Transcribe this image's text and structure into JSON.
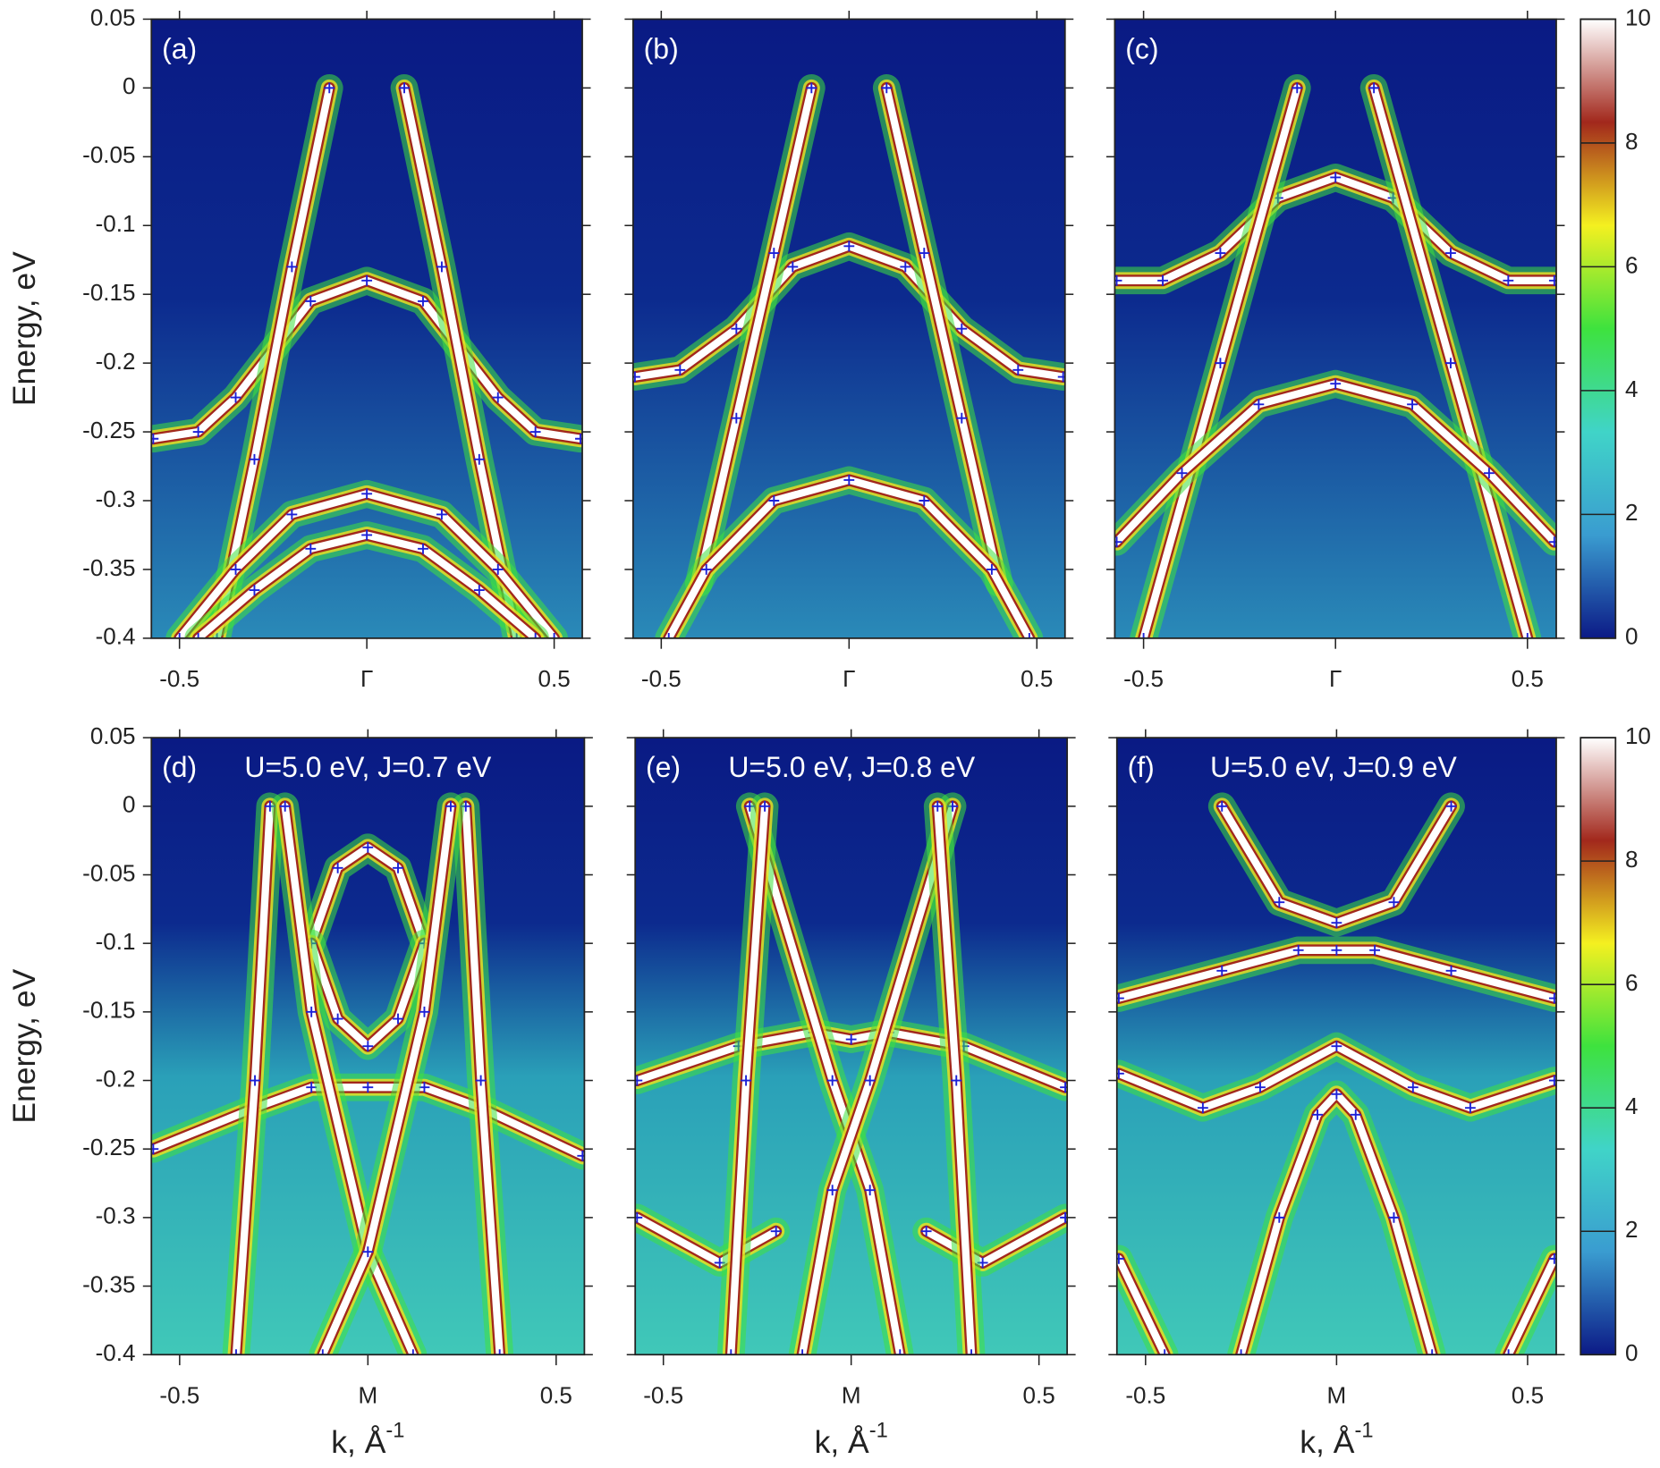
{
  "chart_data": [
    {
      "type": "line",
      "title": "(a)",
      "ylabel": "Energy, eV",
      "xlim": [
        -0.575,
        0.575
      ],
      "xticks": [
        -0.5,
        {
          "value": 0,
          "label": "Γ"
        },
        0.5
      ],
      "ylim": [
        -0.4,
        0.05
      ],
      "yticks": [
        0.05,
        0,
        -0.05,
        -0.1,
        -0.15,
        -0.2,
        -0.25,
        -0.3,
        -0.35,
        -0.4
      ],
      "series": [
        {
          "x": [
            -0.57,
            -0.45,
            -0.35,
            -0.25,
            -0.15,
            0,
            0.15,
            0.25,
            0.35,
            0.45,
            0.57
          ],
          "values": [
            -0.255,
            -0.25,
            -0.225,
            -0.19,
            -0.155,
            -0.14,
            -0.155,
            -0.19,
            -0.225,
            -0.25,
            -0.255
          ]
        },
        {
          "x": [
            -0.1,
            -0.2,
            -0.3,
            -0.4
          ],
          "values": [
            0,
            -0.13,
            -0.27,
            -0.4
          ]
        },
        {
          "x": [
            0.1,
            0.2,
            0.3,
            0.4
          ],
          "values": [
            0,
            -0.13,
            -0.27,
            -0.4
          ]
        },
        {
          "x": [
            -0.5,
            -0.35,
            -0.2,
            0,
            0.2,
            0.35,
            0.5
          ],
          "values": [
            -0.4,
            -0.35,
            -0.31,
            -0.295,
            -0.31,
            -0.35,
            -0.4
          ]
        },
        {
          "x": [
            -0.45,
            -0.3,
            -0.15,
            0,
            0.15,
            0.3,
            0.45
          ],
          "values": [
            -0.4,
            -0.365,
            -0.335,
            -0.325,
            -0.335,
            -0.365,
            -0.4
          ]
        }
      ]
    },
    {
      "type": "line",
      "title": "(b)",
      "xlim": [
        -0.575,
        0.575
      ],
      "xticks": [
        -0.5,
        {
          "value": 0,
          "label": "Γ"
        },
        0.5
      ],
      "ylim": [
        -0.4,
        0.05
      ],
      "yticks": [
        0.05,
        0,
        -0.05,
        -0.1,
        -0.15,
        -0.2,
        -0.25,
        -0.3,
        -0.35,
        -0.4
      ],
      "series": [
        {
          "x": [
            -0.57,
            -0.45,
            -0.3,
            -0.15,
            0,
            0.15,
            0.3,
            0.45,
            0.57
          ],
          "values": [
            -0.21,
            -0.205,
            -0.175,
            -0.13,
            -0.115,
            -0.13,
            -0.175,
            -0.205,
            -0.21
          ]
        },
        {
          "x": [
            -0.1,
            -0.2,
            -0.3,
            -0.4
          ],
          "values": [
            0,
            -0.12,
            -0.24,
            -0.36
          ]
        },
        {
          "x": [
            0.1,
            0.2,
            0.3,
            0.4
          ],
          "values": [
            0,
            -0.12,
            -0.24,
            -0.36
          ]
        },
        {
          "x": [
            -0.48,
            -0.38,
            -0.2,
            0,
            0.2,
            0.38,
            0.48
          ],
          "values": [
            -0.4,
            -0.35,
            -0.3,
            -0.285,
            -0.3,
            -0.35,
            -0.4
          ]
        }
      ]
    },
    {
      "type": "line",
      "title": "(c)",
      "xlim": [
        -0.575,
        0.575
      ],
      "xticks": [
        -0.5,
        {
          "value": 0,
          "label": "Γ"
        },
        0.5
      ],
      "ylim": [
        -0.4,
        0.05
      ],
      "yticks": [
        0.05,
        0,
        -0.05,
        -0.1,
        -0.15,
        -0.2,
        -0.25,
        -0.3,
        -0.35,
        -0.4
      ],
      "series": [
        {
          "x": [
            -0.57,
            -0.45,
            -0.3,
            -0.15,
            0,
            0.15,
            0.3,
            0.45,
            0.57
          ],
          "values": [
            -0.14,
            -0.14,
            -0.12,
            -0.08,
            -0.065,
            -0.08,
            -0.12,
            -0.14,
            -0.14
          ]
        },
        {
          "x": [
            -0.1,
            -0.3,
            -0.5
          ],
          "values": [
            0,
            -0.2,
            -0.4
          ]
        },
        {
          "x": [
            0.1,
            0.3,
            0.5
          ],
          "values": [
            0,
            -0.2,
            -0.4
          ]
        },
        {
          "x": [
            -0.57,
            -0.4,
            -0.2,
            0,
            0.2,
            0.4,
            0.57
          ],
          "values": [
            -0.33,
            -0.28,
            -0.23,
            -0.215,
            -0.23,
            -0.28,
            -0.33
          ]
        }
      ]
    },
    {
      "type": "line",
      "title": "(d)",
      "annotation": "U=5.0 eV, J=0.7 eV",
      "ylabel": "Energy, eV",
      "xlabel": "k, Å",
      "xlabel_exponent": "-1",
      "xlim": [
        -0.575,
        0.575
      ],
      "xticks": [
        -0.5,
        {
          "value": 0,
          "label": "M"
        },
        0.5
      ],
      "ylim": [
        -0.4,
        0.05
      ],
      "yticks": [
        0.05,
        0,
        -0.05,
        -0.1,
        -0.15,
        -0.2,
        -0.25,
        -0.3,
        -0.35,
        -0.4
      ],
      "series": [
        {
          "x": [
            -0.57,
            -0.3,
            -0.15,
            0,
            0.15,
            0.3,
            0.57
          ],
          "values": [
            -0.25,
            -0.22,
            -0.205,
            -0.205,
            -0.205,
            -0.22,
            -0.255
          ]
        },
        {
          "x": [
            -0.15,
            -0.08,
            0,
            0.08,
            0.15
          ],
          "values": [
            -0.1,
            -0.045,
            -0.03,
            -0.045,
            -0.1
          ]
        },
        {
          "x": [
            -0.15,
            -0.08,
            0,
            0.08,
            0.15
          ],
          "values": [
            -0.1,
            -0.155,
            -0.175,
            -0.155,
            -0.1
          ]
        },
        {
          "x": [
            -0.26,
            -0.3,
            -0.35
          ],
          "values": [
            0,
            -0.2,
            -0.4
          ]
        },
        {
          "x": [
            0.26,
            0.3,
            0.35
          ],
          "values": [
            0,
            -0.2,
            -0.4
          ]
        },
        {
          "x": [
            -0.22,
            -0.15,
            0,
            0.12
          ],
          "values": [
            0,
            -0.15,
            -0.325,
            -0.4
          ]
        },
        {
          "x": [
            0.22,
            0.15,
            0,
            -0.12
          ],
          "values": [
            0,
            -0.15,
            -0.325,
            -0.4
          ]
        }
      ]
    },
    {
      "type": "line",
      "title": "(e)",
      "annotation": "U=5.0 eV, J=0.8 eV",
      "xlabel": "k, Å",
      "xlabel_exponent": "-1",
      "xlim": [
        -0.575,
        0.575
      ],
      "xticks": [
        -0.5,
        {
          "value": 0,
          "label": "M"
        },
        0.5
      ],
      "ylim": [
        -0.4,
        0.05
      ],
      "yticks": [
        0.05,
        0,
        -0.05,
        -0.1,
        -0.15,
        -0.2,
        -0.25,
        -0.3,
        -0.35,
        -0.4
      ],
      "series": [
        {
          "x": [
            -0.57,
            -0.3,
            -0.1,
            0,
            0.1,
            0.3,
            0.57
          ],
          "values": [
            -0.2,
            -0.175,
            -0.165,
            -0.17,
            -0.165,
            -0.175,
            -0.205
          ]
        },
        {
          "x": [
            -0.57,
            -0.35,
            -0.2
          ],
          "values": [
            -0.3,
            -0.333,
            -0.31
          ]
        },
        {
          "x": [
            0.2,
            0.35,
            0.57
          ],
          "values": [
            -0.31,
            -0.333,
            -0.3
          ]
        },
        {
          "x": [
            -0.27,
            -0.05,
            0.05,
            0.13
          ],
          "values": [
            0,
            -0.2,
            -0.28,
            -0.4
          ]
        },
        {
          "x": [
            0.27,
            0.05,
            -0.05,
            -0.13
          ],
          "values": [
            0,
            -0.2,
            -0.28,
            -0.4
          ]
        },
        {
          "x": [
            -0.23,
            -0.28,
            -0.32
          ],
          "values": [
            0,
            -0.2,
            -0.4
          ]
        },
        {
          "x": [
            0.23,
            0.28,
            0.32
          ],
          "values": [
            0,
            -0.2,
            -0.4
          ]
        }
      ]
    },
    {
      "type": "line",
      "title": "(f)",
      "annotation": "U=5.0 eV, J=0.9 eV",
      "xlabel": "k, Å",
      "xlabel_exponent": "-1",
      "xlim": [
        -0.575,
        0.575
      ],
      "xticks": [
        -0.5,
        {
          "value": 0,
          "label": "M"
        },
        0.5
      ],
      "ylim": [
        -0.4,
        0.05
      ],
      "yticks": [
        0.05,
        0,
        -0.05,
        -0.1,
        -0.15,
        -0.2,
        -0.25,
        -0.3,
        -0.35,
        -0.4
      ],
      "series": [
        {
          "x": [
            -0.57,
            -0.3,
            -0.1,
            0,
            0.1,
            0.3,
            0.57
          ],
          "values": [
            -0.14,
            -0.12,
            -0.105,
            -0.105,
            -0.105,
            -0.12,
            -0.14
          ]
        },
        {
          "x": [
            -0.57,
            -0.35,
            -0.2,
            0,
            0.2,
            0.35,
            0.57
          ],
          "values": [
            -0.195,
            -0.22,
            -0.205,
            -0.175,
            -0.205,
            -0.22,
            -0.2
          ]
        },
        {
          "x": [
            -0.3,
            -0.15,
            0,
            0.15,
            0.3
          ],
          "values": [
            0,
            -0.07,
            -0.085,
            -0.07,
            0
          ]
        },
        {
          "x": [
            -0.25,
            -0.15,
            -0.05,
            0,
            0.05,
            0.15,
            0.25
          ],
          "values": [
            -0.4,
            -0.3,
            -0.225,
            -0.21,
            -0.225,
            -0.3,
            -0.4
          ]
        },
        {
          "x": [
            -0.57,
            -0.45
          ],
          "values": [
            -0.33,
            -0.4
          ]
        },
        {
          "x": [
            0.45,
            0.57
          ],
          "values": [
            -0.4,
            -0.33
          ]
        }
      ]
    },
    {
      "type": "colorbar",
      "ylim": [
        0,
        10
      ],
      "yticks": [
        0,
        2,
        4,
        6,
        8,
        10
      ],
      "colors": [
        "#0c1a86",
        "#3a9cd0",
        "#40d4c8",
        "#3ee23e",
        "#f4f020",
        "#a2281c",
        "#ffffff"
      ]
    },
    {
      "type": "colorbar",
      "ylim": [
        0,
        10
      ],
      "yticks": [
        0,
        2,
        4,
        6,
        8,
        10
      ],
      "colors": [
        "#0c1a86",
        "#3a9cd0",
        "#40d4c8",
        "#3ee23e",
        "#f4f020",
        "#a2281c",
        "#ffffff"
      ]
    }
  ]
}
